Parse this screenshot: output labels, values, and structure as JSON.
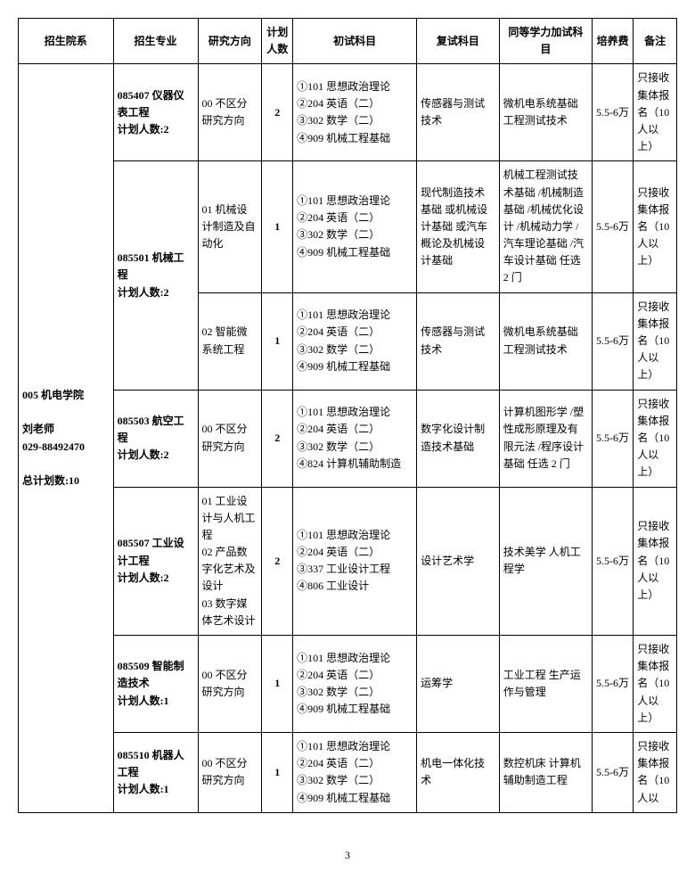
{
  "page_number": "3",
  "headers": {
    "dept": "招生院系",
    "major": "招生专业",
    "direction": "研究方向",
    "plan": "计划人数",
    "exam1": "初试科目",
    "exam2": "复试科目",
    "exam3": "同等学力加试科目",
    "fee": "培养费",
    "note": "备注"
  },
  "dept": {
    "text": "005 机电学院\n\n刘老师\n029-88492470\n\n总计划数:10"
  },
  "rows": [
    {
      "major": "085407 仪器仪表工程\n计划人数:2",
      "direction": "00 不区分研究方向",
      "plan": "2",
      "exam1": "①101 思想政治理论\n②204 英语（二）\n③302 数学（二）\n④909 机械工程基础",
      "exam2": "传感器与测试技术",
      "exam3": "微机电系统基础 工程测试技术",
      "fee": "5.5-6万",
      "note": "只接收集体报名（10人以上）"
    },
    {
      "major": "085501 机械工程\n计划人数:2",
      "major_rowspan": 2,
      "direction": "01 机械设计制造及自动化",
      "plan": "1",
      "exam1": "①101 思想政治理论\n②204 英语（二）\n③302 数学（二）\n④909 机械工程基础",
      "exam2": "现代制造技术基础 或机械设计基础 或汽车概论及机械设计基础",
      "exam3": "机械工程测试技术基础 /机械制造基础 /机械优化设计 /机械动力学 /汽车理论基础 /汽车设计基础 任选 2 门",
      "fee": "5.5-6万",
      "note": "只接收集体报名（10人以上）"
    },
    {
      "direction": "02 智能微系统工程",
      "plan": "1",
      "exam1": "①101 思想政治理论\n②204 英语（二）\n③302 数学（二）\n④909 机械工程基础",
      "exam2": "传感器与测试技术",
      "exam3": "微机电系统基础 工程测试技术",
      "fee": "5.5-6万",
      "note": "只接收集体报名（10人以上）"
    },
    {
      "major": "085503 航空工程\n计划人数:2",
      "direction": "00 不区分研究方向",
      "plan": "2",
      "exam1": "①101 思想政治理论\n②204 英语（二）\n③302 数学（二）\n④824 计算机辅助制造",
      "exam2": "数字化设计制造技术基础",
      "exam3": "计算机图形学 /塑性成形原理及有限元法 /程序设计基础 任选 2 门",
      "fee": "5.5-6万",
      "note": "只接收集体报名（10人以上）"
    },
    {
      "major": "085507 工业设计工程\n计划人数:2",
      "direction": "01 工业设计与人机工程\n02 产品数字化艺术及设计\n03 数字媒体艺术设计",
      "plan": "2",
      "exam1": "①101 思想政治理论\n②204 英语（二）\n③337 工业设计工程\n④806 工业设计",
      "exam2": "设计艺术学",
      "exam3": "技术美学 人机工程学",
      "fee": "5.5-6万",
      "note": "只接收集体报名（10人以上）"
    },
    {
      "major": "085509 智能制造技术\n计划人数:1",
      "direction": "00 不区分研究方向",
      "plan": "1",
      "exam1": "①101 思想政治理论\n②204 英语（二）\n③302 数学（二）\n④909 机械工程基础",
      "exam2": "运筹学",
      "exam3": "工业工程 生产运作与管理",
      "fee": "5.5-6万",
      "note": "只接收集体报名（10人以上）"
    },
    {
      "major": "085510 机器人工程\n计划人数:1",
      "direction": "00 不区分研究方向",
      "plan": "1",
      "exam1": "①101 思想政治理论\n②204 英语（二）\n③302 数学（二）\n④909 机械工程基础",
      "exam2": "机电一体化技术",
      "exam3": "数控机床 计算机辅助制造工程",
      "fee": "5.5-6万",
      "note": "只接收集体报名（10人以"
    }
  ]
}
